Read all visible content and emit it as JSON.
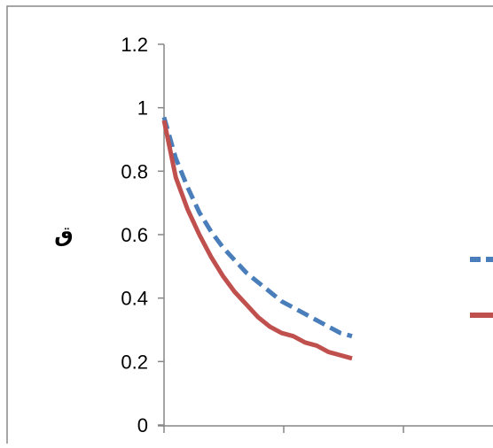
{
  "chart_data": {
    "type": "line",
    "title": "",
    "xlabel": "",
    "ylabel": "ق",
    "ylim": [
      0,
      1.2
    ],
    "y_ticks": [
      "0",
      "0.2",
      "0.4",
      "0.6",
      "0.8",
      "1",
      "1.2"
    ],
    "x_ticks": [],
    "grid": false,
    "legend": "right",
    "x": [
      0,
      0.1,
      0.2,
      0.3,
      0.4,
      0.5,
      0.6,
      0.7,
      0.8,
      0.9,
      1.0,
      1.1,
      1.2,
      1.3,
      1.4,
      1.5,
      1.6
    ],
    "series": [
      {
        "color": "#4a7ebb",
        "dash": "dashed",
        "values": [
          0.97,
          0.84,
          0.75,
          0.67,
          0.61,
          0.56,
          0.52,
          0.48,
          0.45,
          0.42,
          0.39,
          0.37,
          0.35,
          0.33,
          0.31,
          0.29,
          0.28
        ]
      },
      {
        "color": "#c0504d",
        "dash": "solid",
        "values": [
          0.96,
          0.78,
          0.68,
          0.6,
          0.53,
          0.47,
          0.42,
          0.38,
          0.34,
          0.31,
          0.29,
          0.28,
          0.26,
          0.25,
          0.23,
          0.22,
          0.21
        ]
      }
    ]
  }
}
